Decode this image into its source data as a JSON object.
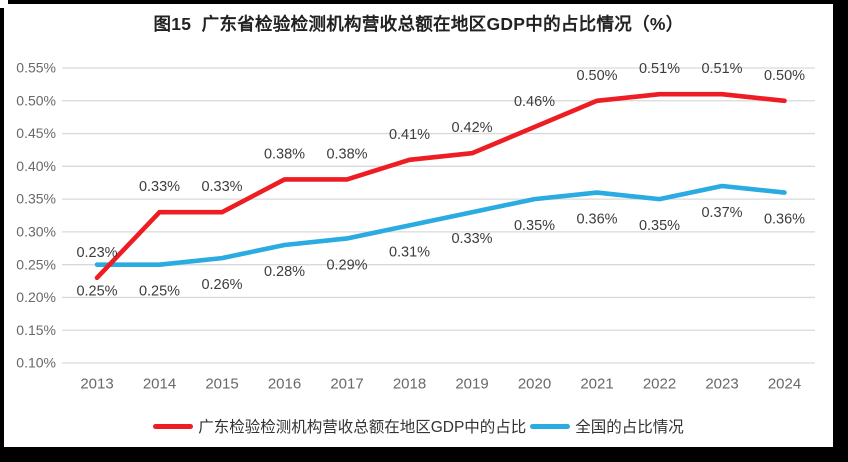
{
  "colors": {
    "frame": "#000000",
    "page_background": "#ffffff",
    "gridline": "#d9d9d9",
    "axis_tick_label": "#696969",
    "data_label": "#3d3d3d",
    "title_text": "#222222",
    "legend_text": "#333333",
    "series_guangdong": "#ee1d23",
    "series_national": "#2aabe2"
  },
  "chart_data": {
    "type": "line",
    "title": "图15  广东省检验检测机构营收总额在地区GDP中的占比情况（%）",
    "categories": [
      "2013",
      "2014",
      "2015",
      "2016",
      "2017",
      "2018",
      "2019",
      "2020",
      "2021",
      "2022",
      "2023",
      "2024"
    ],
    "series": [
      {
        "name": "广东检验检测机构营收总额在地区GDP中的占比",
        "color": "#ee1d23",
        "label_position": "above",
        "values": [
          0.23,
          0.33,
          0.33,
          0.38,
          0.38,
          0.41,
          0.42,
          0.46,
          0.5,
          0.51,
          0.51,
          0.5
        ],
        "labels": [
          "0.23%",
          "0.33%",
          "0.33%",
          "0.38%",
          "0.38%",
          "0.41%",
          "0.42%",
          "0.46%",
          "0.50%",
          "0.51%",
          "0.51%",
          "0.50%"
        ]
      },
      {
        "name": "全国的占比情况",
        "color": "#2aabe2",
        "label_position": "below",
        "values": [
          0.25,
          0.25,
          0.26,
          0.28,
          0.29,
          0.31,
          0.33,
          0.35,
          0.36,
          0.35,
          0.37,
          0.36
        ],
        "labels": [
          "0.25%",
          "0.25%",
          "0.26%",
          "0.28%",
          "0.29%",
          "0.31%",
          "0.33%",
          "0.35%",
          "0.36%",
          "0.35%",
          "0.37%",
          "0.36%"
        ]
      }
    ],
    "xlabel": "",
    "ylabel": "",
    "y_axis": {
      "min": 0.1,
      "max": 0.55,
      "step": 0.05,
      "format": "percent",
      "tick_labels": [
        "0.55%",
        "0.50%",
        "0.45%",
        "0.40%",
        "0.35%",
        "0.30%",
        "0.25%",
        "0.20%",
        "0.15%",
        "0.10%"
      ]
    },
    "grid": true,
    "legend_position": "bottom"
  }
}
